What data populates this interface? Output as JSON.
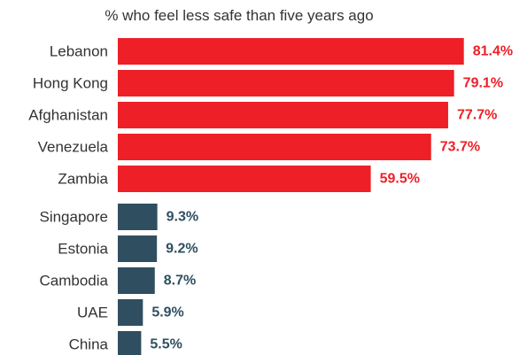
{
  "chart_data": {
    "type": "bar",
    "orientation": "horizontal",
    "title": "% who feel less safe than five years ago",
    "value_suffix": "%",
    "groups": [
      {
        "color": "#ee1f27",
        "categories": [
          "Lebanon",
          "Hong Kong",
          "Afghanistan",
          "Venezuela",
          "Zambia"
        ],
        "values": [
          81.4,
          79.1,
          77.7,
          73.7,
          59.5
        ],
        "labels": [
          "81.4%",
          "79.1%",
          "77.7%",
          "73.7%",
          "59.5%"
        ]
      },
      {
        "color": "#2f4f60",
        "categories": [
          "Singapore",
          "Estonia",
          "Cambodia",
          "UAE",
          "China"
        ],
        "values": [
          9.3,
          9.2,
          8.7,
          5.9,
          5.5
        ],
        "labels": [
          "9.3%",
          "9.2%",
          "8.7%",
          "5.9%",
          "5.5%"
        ]
      }
    ],
    "category_label_color": "#333333",
    "xlim": [
      0,
      100
    ],
    "grid": false,
    "legend": "none"
  }
}
